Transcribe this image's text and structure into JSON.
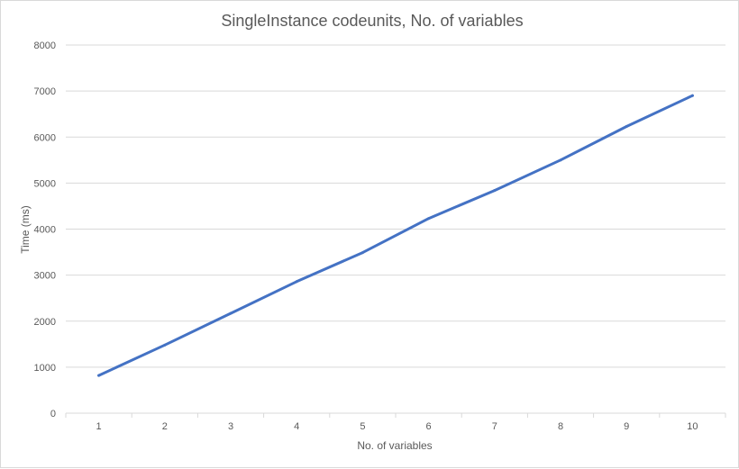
{
  "chart_data": {
    "type": "line",
    "title": "SingleInstance codeunits, No. of variables",
    "xlabel": "No. of variables",
    "ylabel": "Time (ms)",
    "categories": [
      "1",
      "2",
      "3",
      "4",
      "5",
      "6",
      "7",
      "8",
      "9",
      "10"
    ],
    "series": [
      {
        "values": [
          820,
          1480,
          2170,
          2860,
          3490,
          4230,
          4840,
          5500,
          6230,
          6900
        ]
      }
    ],
    "ylim": [
      0,
      8000
    ],
    "yticks": [
      0,
      1000,
      2000,
      3000,
      4000,
      5000,
      6000,
      7000,
      8000
    ],
    "grid": true,
    "legend": "none",
    "colors": {
      "series": "#4472c4",
      "grid": "#d9d9d9",
      "text": "#595959",
      "axis": "#d9d9d9"
    }
  }
}
